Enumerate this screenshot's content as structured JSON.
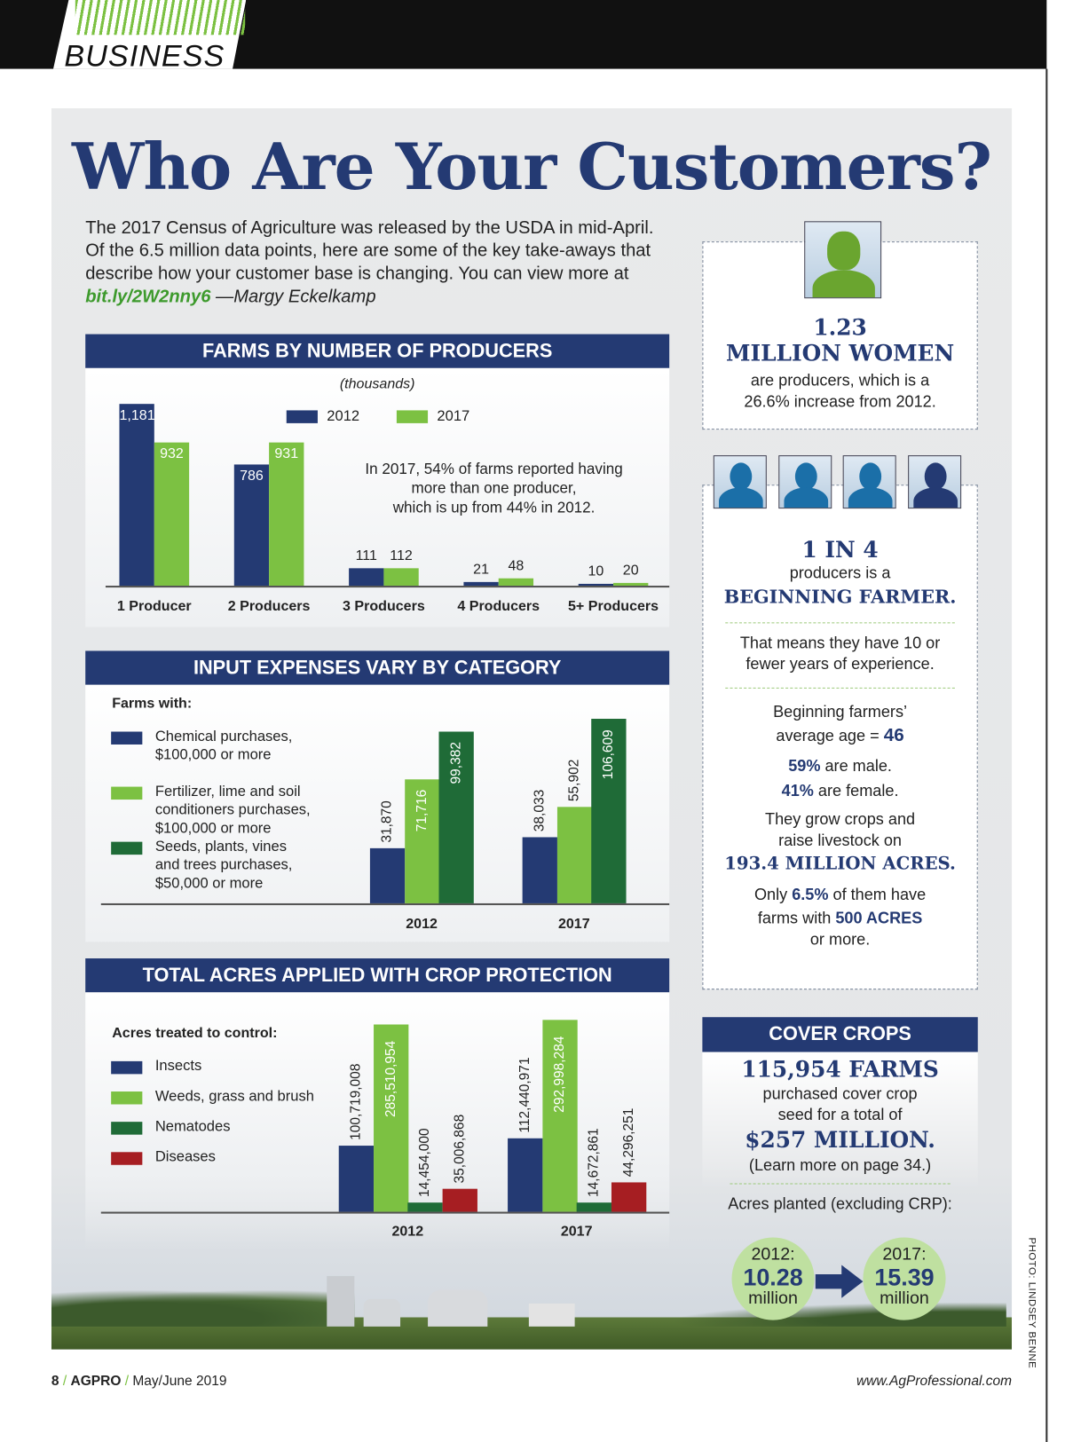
{
  "section": "BUSINESS",
  "title": "Who Are Your Customers?",
  "intro": {
    "text": "The 2017 Census of Agriculture was released by the USDA in mid-April. Of the 6.5 million data points, here are some of the key take-aways that describe how your customer base is changing. You can view more at ",
    "link": "bit.ly/2W2nny6",
    "byline": " —Margy Eckelkamp"
  },
  "colors": {
    "navy": "#243a73",
    "green": "#7cc142",
    "dark_green": "#1f6b37",
    "red": "#a61e22"
  },
  "chart_data": [
    {
      "type": "bar",
      "title": "FARMS BY NUMBER OF PRODUCERS",
      "subtitle": "(thousands)",
      "categories": [
        "1 Producer",
        "2 Producers",
        "3 Producers",
        "4 Producers",
        "5+ Producers"
      ],
      "series": [
        {
          "name": "2012",
          "values": [
            1181,
            786,
            111,
            21,
            10
          ],
          "labels": [
            "1,181",
            "786",
            "111",
            "21",
            "10"
          ]
        },
        {
          "name": "2017",
          "values": [
            932,
            931,
            112,
            48,
            20
          ],
          "labels": [
            "932",
            "931",
            "112",
            "48",
            "20"
          ]
        }
      ],
      "annotation": [
        "In 2017, 54% of farms reported having",
        "more than one producer,",
        "which is up from 44% in 2012."
      ],
      "legend": "top"
    },
    {
      "type": "bar",
      "title": "INPUT EXPENSES VARY BY CATEGORY",
      "legend_title": "Farms with:",
      "categories": [
        "2012",
        "2017"
      ],
      "series": [
        {
          "name": "Chemical purchases, $100,000 or more",
          "name_lines": [
            "Chemical purchases,",
            "$100,000 or more"
          ],
          "values": [
            31870,
            38033
          ],
          "labels": [
            "31,870",
            "38,033"
          ]
        },
        {
          "name": "Fertilizer, lime and soil conditioners purchases, $100,000 or more",
          "name_lines": [
            "Fertilizer, lime and soil",
            "conditioners purchases,",
            "$100,000 or more"
          ],
          "values": [
            71716,
            55902
          ],
          "labels": [
            "71,716",
            "55,902"
          ]
        },
        {
          "name": "Seeds, plants, vines and trees purchases, $50,000 or more",
          "name_lines": [
            "Seeds, plants, vines",
            "and trees purchases,",
            "$50,000 or more"
          ],
          "values": [
            99382,
            106609
          ],
          "labels": [
            "99,382",
            "106,609"
          ]
        }
      ],
      "legend": "left"
    },
    {
      "type": "bar",
      "title": "TOTAL ACRES APPLIED WITH CROP PROTECTION",
      "legend_title": "Acres treated to control:",
      "categories": [
        "2012",
        "2017"
      ],
      "series": [
        {
          "name": "Insects",
          "values": [
            100719008,
            112440971
          ],
          "labels": [
            "100,719,008",
            "112,440,971"
          ]
        },
        {
          "name": "Weeds, grass and brush",
          "values": [
            285510954,
            292998284
          ],
          "labels": [
            "285,510,954",
            "292,998,284"
          ]
        },
        {
          "name": "Nematodes",
          "values": [
            14454000,
            14672861
          ],
          "labels": [
            "14,454,000",
            "14,672,861"
          ]
        },
        {
          "name": "Diseases",
          "values": [
            35006868,
            44296251
          ],
          "labels": [
            "35,006,868",
            "44,296,251"
          ]
        }
      ],
      "legend": "left"
    }
  ],
  "women": {
    "figure": "1.23",
    "headline": "MILLION WOMEN",
    "line1": "are producers, which is a",
    "line2": "26.6% increase from 2012."
  },
  "beginning": {
    "headline": "1 IN 4",
    "line1": "producers is a",
    "emph": "BEGINNING FARMER.",
    "exp1": "That means they have 10 or",
    "exp2": "fewer years of experience.",
    "age1": "Beginning farmers’",
    "age2": "average age = ",
    "age": "46",
    "male_pct": "59%",
    "male": " are male.",
    "female_pct": "41%",
    "female": " are female.",
    "grow1": "They grow crops and",
    "grow2": "raise livestock on",
    "acres": "193.4 MILLION ACRES.",
    "only": "Only ",
    "only_pct": "6.5%",
    "only2": " of them have",
    "farms": "farms with ",
    "farms_emph": "500 ACRES",
    "more": "or more."
  },
  "cover": {
    "header": "COVER CROPS",
    "farms": "115,954 FARMS",
    "l1": "purchased cover crop",
    "l2": "seed for a total of",
    "total": "$257 MILLION.",
    "learn": "(Learn more on page 34.)",
    "acres_label": "Acres planted (excluding CRP):",
    "y1": "2012:",
    "v1": "10.28",
    "u1": "million",
    "y2": "2017:",
    "v2": "15.39",
    "u2": "million"
  },
  "photo_credit": "PHOTO: LINDSEY BENNE",
  "footer": {
    "page": "8",
    "sep": "/",
    "brand": "AGPRO",
    "issue": "May/June 2019",
    "site": "www.AgProfessional.com"
  }
}
